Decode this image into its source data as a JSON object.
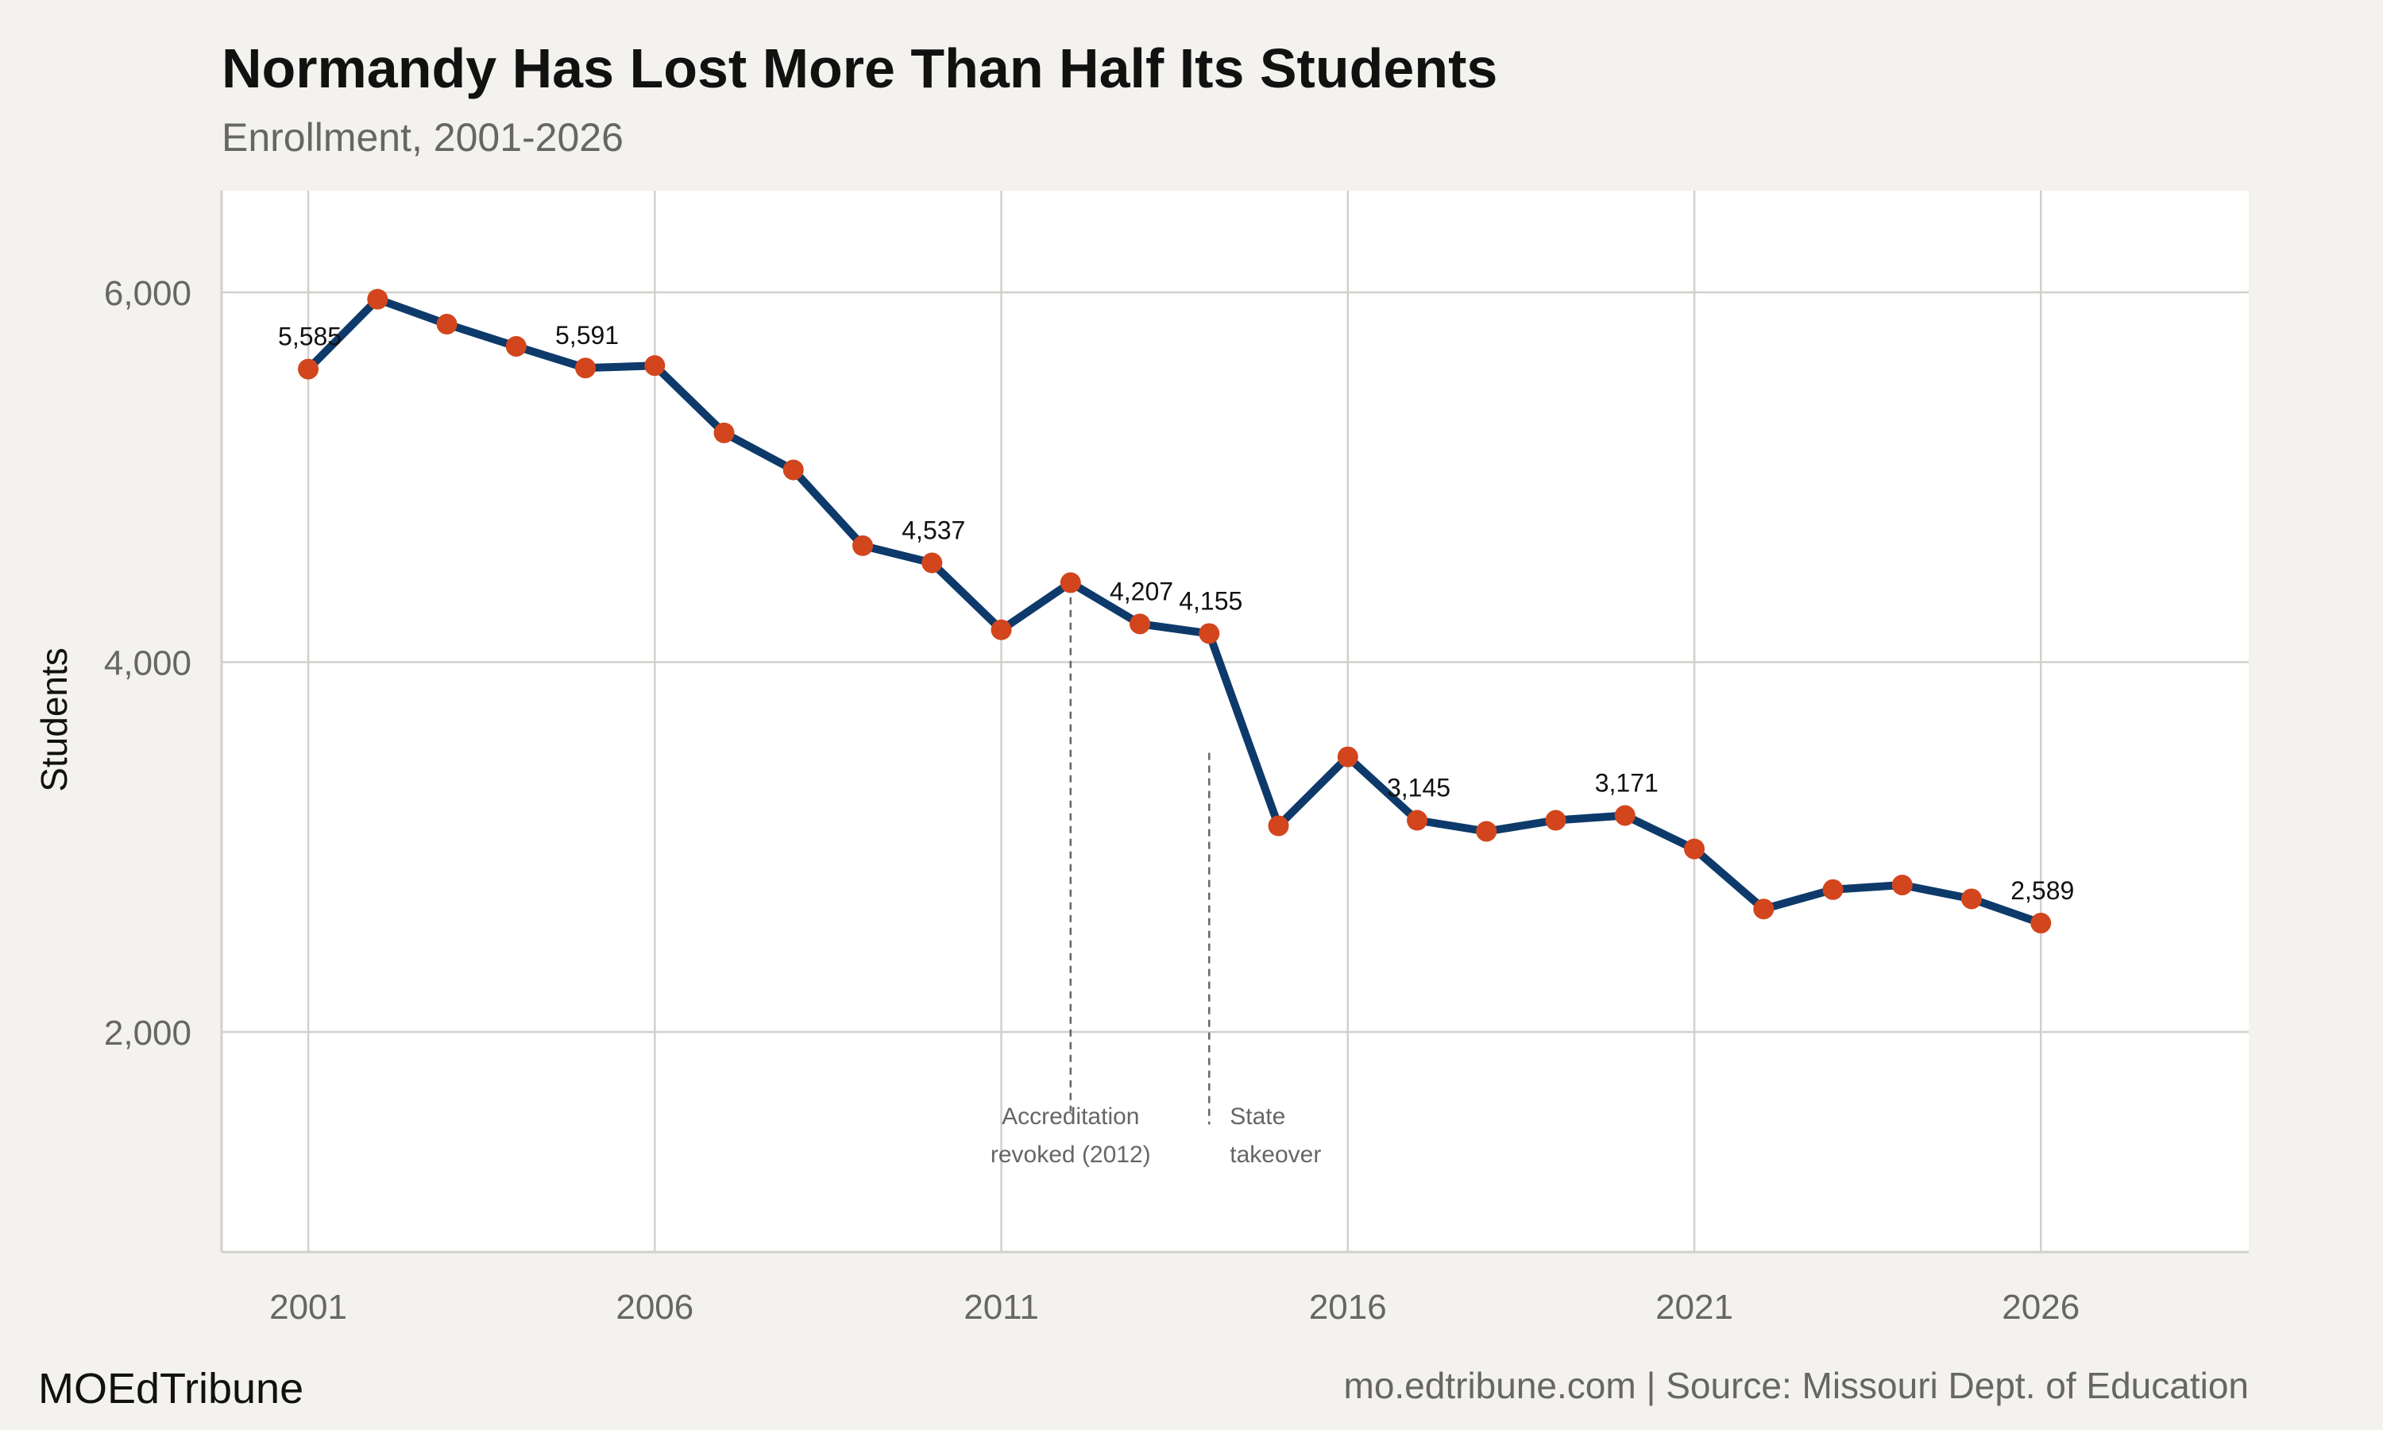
{
  "colors": {
    "background": "#f4f2ee",
    "panel": "#ffffff",
    "grid": "#d2d0cb",
    "line": "#0d3a6a",
    "point": "#d2451d",
    "annotation": "#666666"
  },
  "footer": {
    "brand": "MOEdTribune",
    "source": "mo.edtribune.com | Source: Missouri Dept. of Education"
  },
  "chart_data": {
    "type": "line",
    "title": "Normandy Has Lost More Than Half Its Students",
    "subtitle": "Enrollment, 2001-2026",
    "xlabel": "",
    "ylabel": "Students",
    "xlim": [
      1999.75,
      2029.0
    ],
    "ylim": [
      810,
      6550
    ],
    "x_ticks": [
      2001,
      2006,
      2011,
      2016,
      2021,
      2026
    ],
    "x_tick_labels": [
      "2001",
      "2006",
      "2011",
      "2016",
      "2021",
      "2026"
    ],
    "y_ticks": [
      2000,
      4000,
      6000
    ],
    "y_tick_labels": [
      "2,000",
      "4,000",
      "6,000"
    ],
    "grid": true,
    "legend": "none",
    "series": [
      {
        "x": [
          2001,
          2002,
          2003,
          2004,
          2005,
          2006,
          2007,
          2008,
          2009,
          2010,
          2011,
          2012,
          2013,
          2014,
          2015,
          2016,
          2017,
          2018,
          2019,
          2020,
          2021,
          2022,
          2023,
          2024,
          2025,
          2026
        ],
        "y": [
          5585,
          5963,
          5828,
          5708,
          5591,
          5604,
          5240,
          5040,
          4630,
          4537,
          4175,
          4430,
          4207,
          4155,
          3115,
          3488,
          3145,
          3085,
          3145,
          3171,
          2990,
          2665,
          2770,
          2795,
          2720,
          2589
        ]
      }
    ],
    "data_labels": [
      {
        "x": 2001,
        "y": 5585,
        "text": "5,585"
      },
      {
        "x": 2005,
        "y": 5591,
        "text": "5,591"
      },
      {
        "x": 2010,
        "y": 4537,
        "text": "4,537"
      },
      {
        "x": 2013,
        "y": 4207,
        "text": "4,207"
      },
      {
        "x": 2014,
        "y": 4155,
        "text": "4,155"
      },
      {
        "x": 2017,
        "y": 3145,
        "text": "3,145"
      },
      {
        "x": 2020,
        "y": 3171,
        "text": "3,171"
      },
      {
        "x": 2026,
        "y": 2589,
        "text": "2,589"
      }
    ],
    "annotations": [
      {
        "x": 2012,
        "y_from": 4420,
        "y_to": 1570,
        "lines": [
          "Accreditation",
          "revoked (2012)"
        ],
        "align": "center"
      },
      {
        "x": 2014,
        "y_from": 3510,
        "y_to": 1500,
        "lines": [
          "State",
          "takeover"
        ],
        "align": "start"
      }
    ]
  }
}
